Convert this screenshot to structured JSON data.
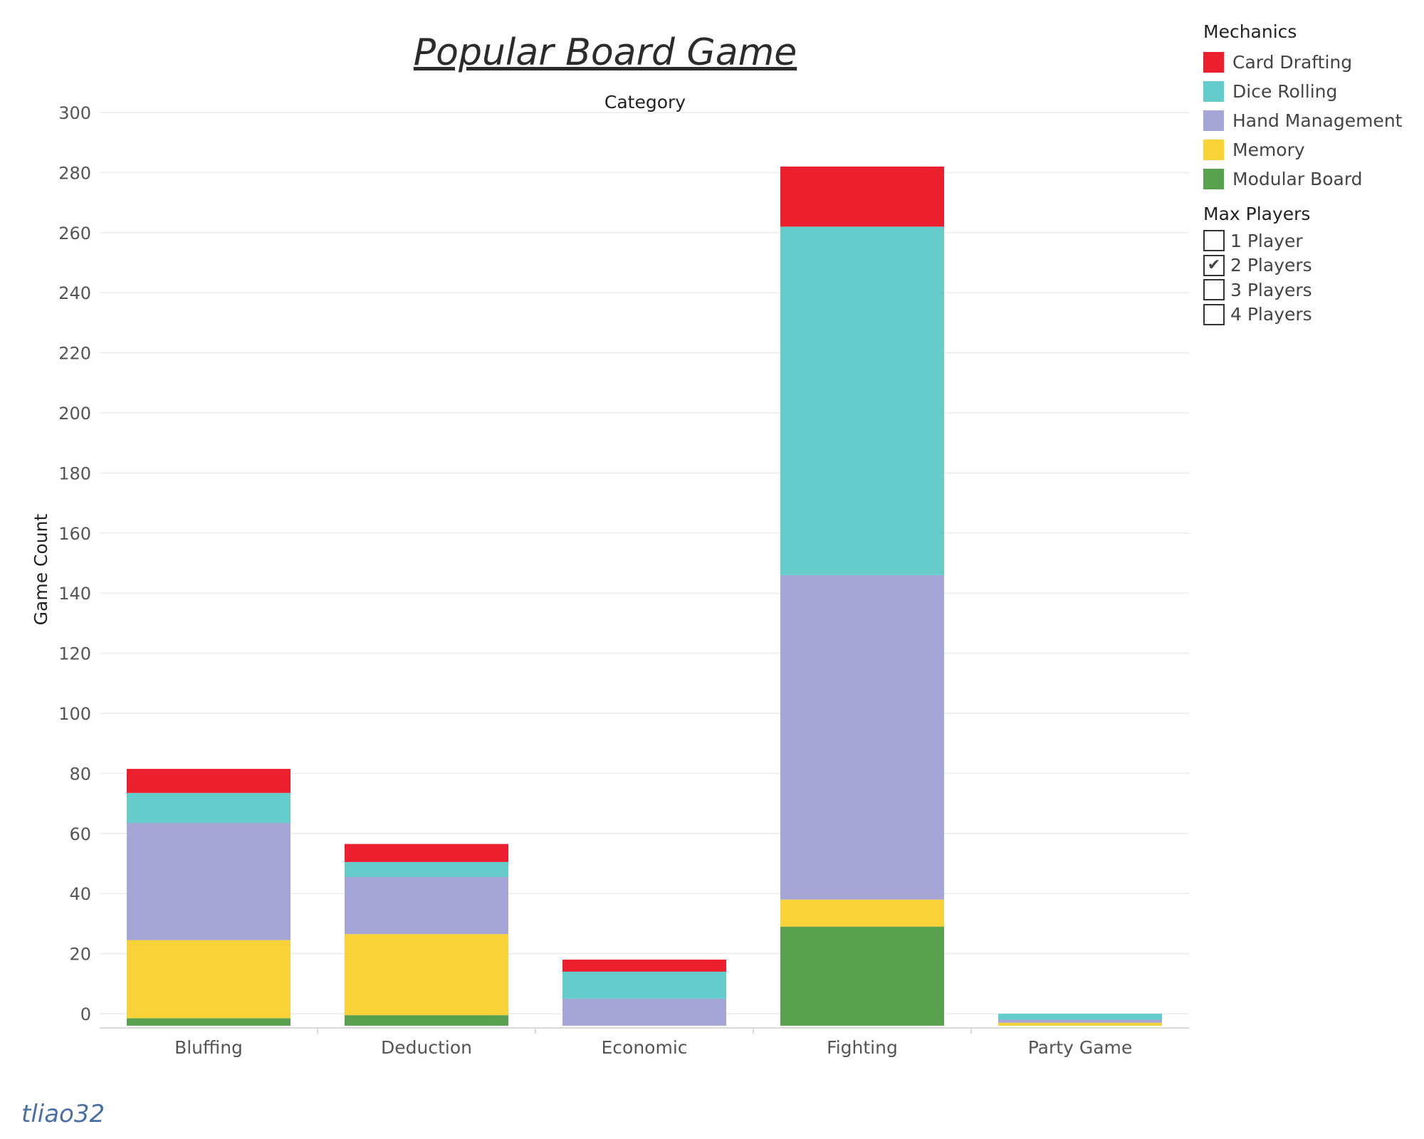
{
  "title": "Popular Board Game",
  "signature": "tliao32",
  "legend": {
    "title": "Mechanics",
    "items": [
      {
        "label": "Card Drafting",
        "color": "#ec1f2e"
      },
      {
        "label": "Dice Rolling",
        "color": "#66cccb"
      },
      {
        "label": "Hand Management",
        "color": "#a5a5d6"
      },
      {
        "label": "Memory",
        "color": "#f9d23a"
      },
      {
        "label": "Modular Board",
        "color": "#59a14f"
      }
    ]
  },
  "filter": {
    "title": "Max Players",
    "items": [
      {
        "label": "1 Player",
        "checked": false
      },
      {
        "label": "2 Players",
        "checked": true
      },
      {
        "label": "3 Players",
        "checked": false
      },
      {
        "label": "4 Players",
        "checked": false
      }
    ]
  },
  "chart_data": {
    "type": "bar",
    "stacked": true,
    "title": "Popular Board Game",
    "xlabel": "Category",
    "ylabel": "Game Count",
    "ylim": [
      -4,
      300
    ],
    "yticks": [
      0,
      20,
      40,
      60,
      80,
      100,
      120,
      140,
      160,
      180,
      200,
      220,
      240,
      260,
      280,
      300
    ],
    "grid": true,
    "legend_position": "top-right",
    "categories": [
      "Bluffing",
      "Deduction",
      "Economic",
      "Fighting",
      "Party Game"
    ],
    "series": [
      {
        "name": "Modular Board",
        "color": "#59a14f",
        "values": [
          -1.5,
          -0.5,
          -4,
          29,
          -4
        ]
      },
      {
        "name": "Memory",
        "color": "#f9d23a",
        "values": [
          26,
          27,
          0,
          9,
          1
        ]
      },
      {
        "name": "Hand Management",
        "color": "#a5a5d6",
        "values": [
          39,
          19,
          9,
          108,
          1
        ]
      },
      {
        "name": "Dice Rolling",
        "color": "#66cccb",
        "values": [
          10,
          5,
          9,
          116,
          2
        ]
      },
      {
        "name": "Card Drafting",
        "color": "#ec1f2e",
        "values": [
          8,
          6,
          4,
          20,
          0
        ]
      }
    ]
  }
}
